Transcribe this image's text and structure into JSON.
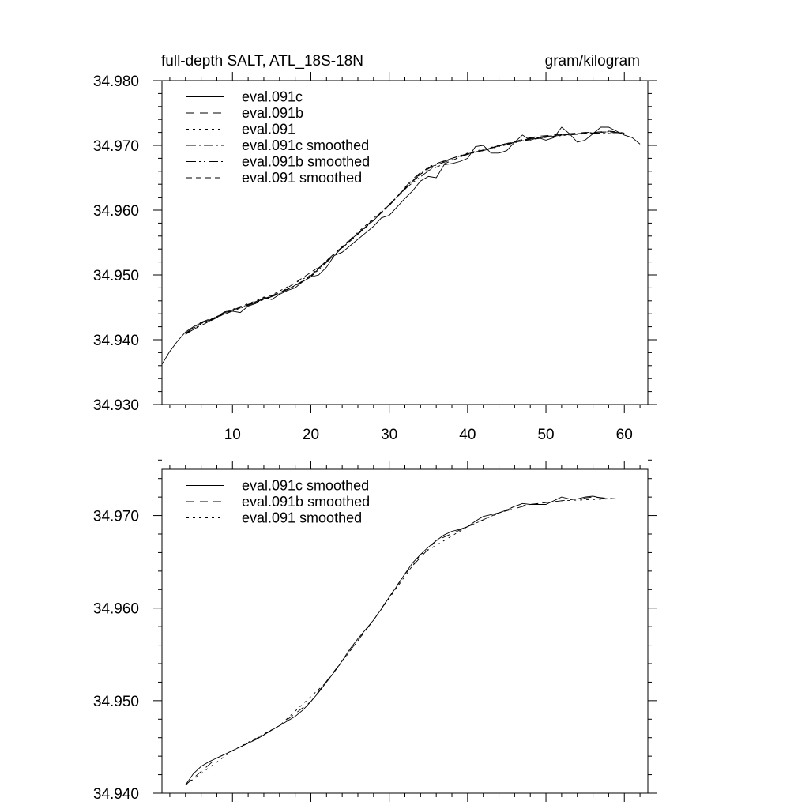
{
  "chart_data": [
    {
      "type": "line",
      "title_left": "full-depth SALT, ATL_18S-18N",
      "title_right": "gram/kilogram",
      "xlim": [
        1,
        63
      ],
      "ylim": [
        34.93,
        34.98
      ],
      "y_ticks": [
        "34.930",
        "34.940",
        "34.950",
        "34.960",
        "34.970",
        "34.980"
      ],
      "x_ticks": [
        "10",
        "20",
        "30",
        "40",
        "50",
        "60"
      ],
      "legend": [
        "eval.091c",
        "eval.091b",
        "eval.091",
        "eval.091c smoothed",
        "eval.091b smoothed",
        "eval.091 smoothed"
      ],
      "series": [
        {
          "name": "eval.091c",
          "dash": "",
          "x": [
            1,
            2,
            3,
            4,
            5,
            6,
            7,
            8,
            9,
            10,
            11,
            12,
            13,
            14,
            15,
            16,
            17,
            18,
            19,
            20,
            21,
            22,
            23,
            24,
            25,
            26,
            27,
            28,
            29,
            30,
            31,
            32,
            33,
            34,
            35,
            36,
            37,
            38,
            39,
            40,
            41,
            42,
            43,
            44,
            45,
            46,
            47,
            48,
            49,
            50,
            51,
            52,
            53,
            54,
            55,
            56,
            57,
            58,
            59,
            60,
            61,
            62
          ],
          "y": [
            34.9362,
            34.9382,
            34.9398,
            34.9412,
            34.942,
            34.9426,
            34.943,
            34.9434,
            34.9442,
            34.9444,
            34.9442,
            34.9452,
            34.9456,
            34.9466,
            34.9462,
            34.947,
            34.9476,
            34.948,
            34.949,
            34.9497,
            34.95,
            34.9512,
            34.953,
            34.9535,
            34.9545,
            34.9555,
            34.9565,
            34.9575,
            34.9588,
            34.9592,
            34.9605,
            34.9618,
            34.963,
            34.9645,
            34.9652,
            34.965,
            34.967,
            34.9672,
            34.9675,
            34.968,
            34.9698,
            34.97,
            34.9688,
            34.9688,
            34.9692,
            34.9705,
            34.9716,
            34.9708,
            34.9712,
            34.9708,
            34.9712,
            34.9728,
            34.9718,
            34.9705,
            34.9708,
            34.9718,
            34.9728,
            34.9728,
            34.9722,
            34.9716,
            34.9712,
            34.9702
          ]
        },
        {
          "name": "eval.091b",
          "dash": "10,7",
          "x": [
            4,
            5,
            6,
            7,
            8,
            9,
            10,
            11,
            12,
            13,
            14,
            15,
            16,
            17,
            18,
            19,
            20,
            21,
            22,
            23,
            24,
            25,
            26,
            27,
            28,
            29,
            30,
            31,
            32,
            33,
            34,
            35,
            36,
            37,
            38,
            39,
            40,
            41,
            42,
            43,
            44,
            45,
            46,
            47,
            48,
            49,
            50,
            51,
            52,
            53,
            54,
            55,
            56,
            57,
            58,
            59,
            60
          ],
          "y": [
            34.9408,
            34.9416,
            34.9425,
            34.943,
            34.9436,
            34.9443,
            34.9446,
            34.9449,
            34.9454,
            34.9459,
            34.9463,
            34.9468,
            34.9473,
            34.9478,
            34.9484,
            34.9491,
            34.9499,
            34.951,
            34.9522,
            34.9533,
            34.9543,
            34.9554,
            34.9564,
            34.9575,
            34.9586,
            34.9597,
            34.9608,
            34.9621,
            34.9635,
            34.9648,
            34.9658,
            34.9665,
            34.9672,
            34.9676,
            34.968,
            34.9684,
            34.9687,
            34.969,
            34.9692,
            34.9696,
            34.97,
            34.9703,
            34.9706,
            34.9709,
            34.9712,
            34.9714,
            34.9715,
            34.9716,
            34.9717,
            34.9718,
            34.9719,
            34.972,
            34.972,
            34.9721,
            34.9722,
            34.9721,
            34.9719
          ]
        },
        {
          "name": "eval.091",
          "dash": "3,5",
          "x": [
            5,
            10,
            15,
            20,
            25,
            30,
            35,
            40,
            45,
            50,
            55,
            59
          ],
          "y": [
            34.9418,
            34.9447,
            34.9469,
            34.95,
            34.9555,
            34.9609,
            34.9667,
            34.9688,
            34.9703,
            34.9713,
            34.9719,
            34.9718
          ]
        },
        {
          "name": "eval.091c smoothed",
          "dash": "12,4,2,4",
          "x": [
            4,
            6,
            8,
            10,
            12,
            14,
            16,
            18,
            20,
            22,
            24,
            26,
            28,
            30,
            32,
            34,
            36,
            38,
            40,
            42,
            44,
            46,
            48,
            50,
            52,
            54,
            56,
            58,
            60
          ],
          "y": [
            34.941,
            34.9427,
            34.9436,
            34.9446,
            34.9454,
            34.9462,
            34.9472,
            34.9483,
            34.9498,
            34.9521,
            34.9543,
            34.9564,
            34.9585,
            34.9607,
            34.9634,
            34.9657,
            34.9671,
            34.968,
            34.9687,
            34.9692,
            34.9699,
            34.9705,
            34.9711,
            34.9714,
            34.9716,
            34.9718,
            34.972,
            34.9721,
            34.9719
          ]
        },
        {
          "name": "eval.091b smoothed",
          "dash": "12,4,2,4,2,4",
          "x": [
            4,
            8,
            12,
            16,
            20,
            24,
            28,
            32,
            36,
            40,
            44,
            48,
            52,
            56,
            60
          ],
          "y": [
            34.9409,
            34.9435,
            34.9453,
            34.9471,
            34.9497,
            34.9542,
            34.9584,
            34.9633,
            34.967,
            34.9686,
            34.9698,
            34.971,
            34.9715,
            34.9719,
            34.9718
          ]
        },
        {
          "name": "eval.091 smoothed",
          "dash": "7,5",
          "x": [
            4,
            10,
            16,
            22,
            28,
            34,
            40,
            46,
            52,
            58,
            60
          ],
          "y": [
            34.941,
            34.9446,
            34.9472,
            34.952,
            34.9584,
            34.9656,
            34.9687,
            34.9705,
            34.9716,
            34.9721,
            34.9719
          ]
        }
      ]
    },
    {
      "type": "line",
      "xlim": [
        1,
        63
      ],
      "ylim": [
        34.94,
        34.975
      ],
      "y_ticks": [
        "34.940",
        "34.950",
        "34.960",
        "34.970"
      ],
      "legend": [
        "eval.091c smoothed",
        "eval.091b smoothed",
        "eval.091 smoothed"
      ],
      "series": [
        {
          "name": "eval.091c smoothed",
          "dash": "",
          "x": [
            4,
            5,
            6,
            7,
            8,
            9,
            10,
            11,
            12,
            13,
            14,
            15,
            16,
            17,
            18,
            19,
            20,
            21,
            22,
            23,
            24,
            25,
            26,
            27,
            28,
            29,
            30,
            31,
            32,
            33,
            34,
            35,
            36,
            37,
            38,
            39,
            40,
            41,
            42,
            43,
            44,
            45,
            46,
            47,
            48,
            49,
            50,
            51,
            52,
            53,
            54,
            55,
            56,
            57,
            58,
            59,
            60
          ],
          "y": [
            34.9409,
            34.9421,
            34.9429,
            34.9434,
            34.9438,
            34.9442,
            34.9446,
            34.945,
            34.9454,
            34.9458,
            34.9463,
            34.9468,
            34.9473,
            34.9478,
            34.9483,
            34.949,
            34.9499,
            34.9509,
            34.952,
            34.9531,
            34.9543,
            34.9556,
            34.9567,
            34.9577,
            34.9587,
            34.9599,
            34.9612,
            34.9624,
            34.9637,
            34.9649,
            34.9658,
            34.9666,
            34.9673,
            34.9679,
            34.9683,
            34.9685,
            34.9688,
            34.9694,
            34.9699,
            34.9701,
            34.9703,
            34.9706,
            34.971,
            34.9713,
            34.9712,
            34.9712,
            34.9712,
            34.9716,
            34.972,
            34.9718,
            34.9718,
            34.972,
            34.9721,
            34.9719,
            34.9718,
            34.9718,
            34.9718
          ]
        },
        {
          "name": "eval.091b smoothed",
          "dash": "10,7",
          "x": [
            4,
            8,
            12,
            16,
            20,
            24,
            28,
            32,
            36,
            40,
            44,
            48,
            52,
            56,
            59
          ],
          "y": [
            34.9409,
            34.9438,
            34.9454,
            34.9473,
            34.9499,
            34.9543,
            34.9587,
            34.9637,
            34.9673,
            34.9688,
            34.9703,
            34.9712,
            34.9716,
            34.972,
            34.9718
          ]
        },
        {
          "name": "eval.091 smoothed",
          "dash": "3,5",
          "x": [
            4,
            10,
            16,
            22,
            28,
            34,
            40,
            46,
            52,
            58
          ],
          "y": [
            34.9409,
            34.9446,
            34.9473,
            34.952,
            34.9587,
            34.9658,
            34.9688,
            34.971,
            34.9716,
            34.9718
          ]
        }
      ]
    }
  ]
}
